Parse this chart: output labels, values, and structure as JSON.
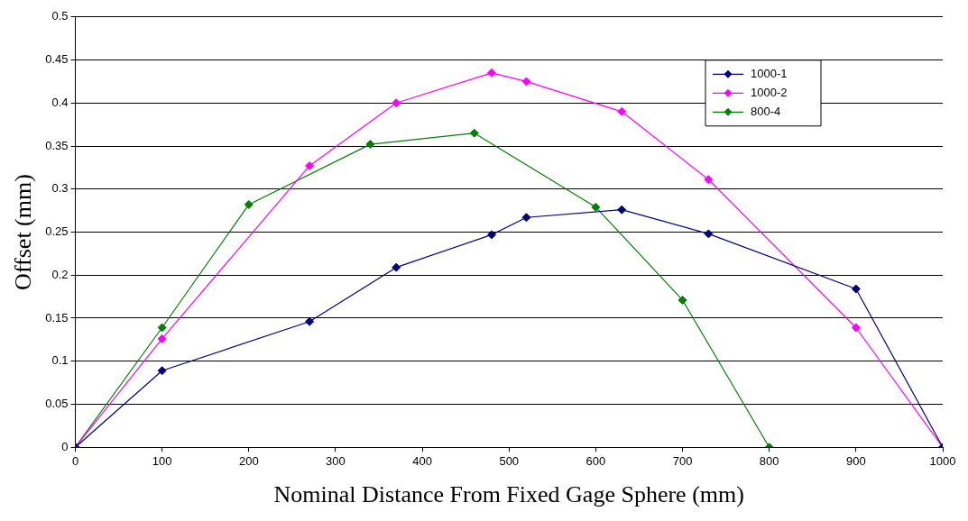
{
  "chart_data": {
    "type": "line",
    "xlabel": "Nominal Distance From Fixed Gage Sphere (mm)",
    "ylabel": "Offset (mm)",
    "xlim": [
      0,
      1000
    ],
    "xticks": [
      0,
      100,
      200,
      300,
      400,
      500,
      600,
      700,
      800,
      900,
      1000
    ],
    "ylim": [
      0,
      0.5
    ],
    "yticks": [
      0,
      0.05,
      0.1,
      0.15,
      0.2,
      0.25,
      0.3,
      0.35,
      0.4,
      0.45,
      0.5
    ],
    "grid": "y",
    "legend": "top right",
    "marker": "diamond",
    "line_style": "solid",
    "series": [
      {
        "name": "1000-1",
        "color": "#000080",
        "x": [
          0,
          100,
          270,
          370,
          480,
          520,
          630,
          730,
          900,
          1000
        ],
        "values": [
          0,
          0.089,
          0.146,
          0.209,
          0.247,
          0.267,
          0.276,
          0.248,
          0.184,
          0
        ]
      },
      {
        "name": "1000-2",
        "color": "#ff00ff",
        "x": [
          0,
          100,
          270,
          370,
          480,
          520,
          630,
          730,
          900,
          1000
        ],
        "values": [
          0,
          0.126,
          0.327,
          0.4,
          0.435,
          0.425,
          0.39,
          0.311,
          0.139,
          0
        ]
      },
      {
        "name": "800-4",
        "color": "#008000",
        "x": [
          0,
          100,
          200,
          340,
          460,
          600,
          700,
          800
        ],
        "values": [
          0,
          0.139,
          0.282,
          0.352,
          0.365,
          0.279,
          0.171,
          0
        ]
      }
    ]
  }
}
